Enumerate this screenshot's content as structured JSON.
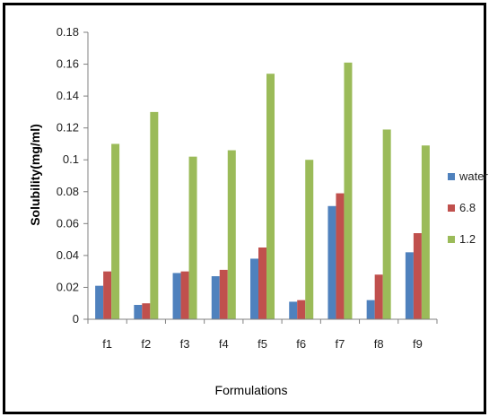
{
  "chart_data": {
    "type": "bar",
    "title": "",
    "xlabel": "Formulations",
    "ylabel": "Solubility(mg/ml)",
    "categories": [
      "f1",
      "f2",
      "f3",
      "f4",
      "f5",
      "f6",
      "f7",
      "f8",
      "f9"
    ],
    "ylim": [
      0,
      0.18
    ],
    "yticks": [
      "0",
      "0.02",
      "0.04",
      "0.06",
      "0.08",
      "0.1",
      "0.12",
      "0.14",
      "0.16",
      "0.18"
    ],
    "grid": false,
    "legend_position": "right",
    "series": [
      {
        "name": "water",
        "color": "#4F81BD",
        "values": [
          0.021,
          0.009,
          0.029,
          0.027,
          0.038,
          0.011,
          0.071,
          0.012,
          0.042
        ]
      },
      {
        "name": "6.8",
        "color": "#C0504D",
        "values": [
          0.03,
          0.01,
          0.03,
          0.031,
          0.045,
          0.012,
          0.079,
          0.028,
          0.054
        ]
      },
      {
        "name": "1.2",
        "color": "#9BBB59",
        "values": [
          0.11,
          0.13,
          0.102,
          0.106,
          0.154,
          0.1,
          0.161,
          0.119,
          0.109
        ]
      }
    ]
  }
}
